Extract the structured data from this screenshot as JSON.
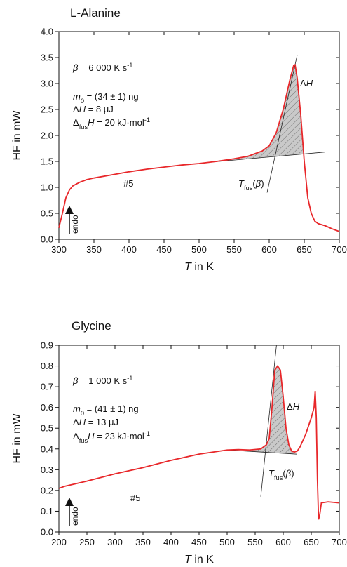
{
  "chart_data": [
    {
      "type": "line",
      "title": "L-Alanine",
      "color": "#e8272a",
      "xlabel": [
        {
          "text": "T",
          "style": "italic"
        },
        {
          "text": " in K"
        }
      ],
      "ylabel": "HF in mW",
      "xlim": [
        300,
        700
      ],
      "ylim": [
        0,
        4
      ],
      "xticks": [
        300,
        350,
        400,
        450,
        500,
        550,
        600,
        650,
        700
      ],
      "yticks": [
        {
          "value": 0,
          "label": "0.0"
        },
        0.5,
        {
          "value": 1,
          "label": "1.0"
        },
        1.5,
        {
          "value": 2,
          "label": "2.0"
        },
        2.5,
        {
          "value": 3,
          "label": "3.0"
        },
        3.5,
        {
          "value": 4,
          "label": "4.0"
        }
      ],
      "x": [
        300,
        305,
        310,
        315,
        320,
        330,
        340,
        350,
        375,
        400,
        425,
        450,
        475,
        500,
        525,
        550,
        570,
        580,
        590,
        600,
        610,
        620,
        630,
        635,
        637,
        640,
        645,
        650,
        655,
        660,
        665,
        670,
        680,
        690,
        700
      ],
      "values": [
        0.22,
        0.5,
        0.8,
        0.95,
        1.03,
        1.1,
        1.15,
        1.18,
        1.24,
        1.3,
        1.35,
        1.39,
        1.43,
        1.46,
        1.5,
        1.55,
        1.6,
        1.65,
        1.7,
        1.8,
        2.05,
        2.5,
        3.1,
        3.35,
        3.36,
        3.1,
        2.4,
        1.5,
        0.8,
        0.5,
        0.35,
        0.3,
        0.26,
        0.2,
        0.15
      ],
      "tangents": [
        {
          "x": [
            520,
            680
          ],
          "y": [
            1.49,
            1.68
          ]
        },
        {
          "x": [
            597,
            640
          ],
          "y": [
            0.9,
            3.55
          ]
        }
      ],
      "shade": {
        "x": [
          560,
          650
        ]
      },
      "annotations": [
        {
          "parts": [
            {
              "text": "β",
              "style": "italic"
            },
            {
              "text": " = 6 000 K s"
            },
            {
              "text": "-1",
              "style": "sup"
            }
          ]
        },
        {
          "parts": [
            {
              "text": "m",
              "style": "italic"
            },
            {
              "text": "0",
              "style": "sub"
            },
            {
              "text": "  = (34 ± 1) ng"
            }
          ]
        },
        {
          "parts": [
            {
              "text": "Δ"
            },
            {
              "text": "H",
              "style": "italic"
            },
            {
              "text": "  = 8 μJ"
            }
          ]
        },
        {
          "parts": [
            {
              "text": "Δ"
            },
            {
              "text": "fus",
              "style": "sub"
            },
            {
              "text": "H",
              "style": "italic"
            },
            {
              "text": " = 20 kJ·mol"
            },
            {
              "text": "-1",
              "style": "sup"
            }
          ]
        },
        {
          "parts": [
            {
              "text": "Δ"
            },
            {
              "text": "H",
              "style": "italic"
            }
          ]
        },
        {
          "parts": [
            {
              "text": "T",
              "style": "italic"
            },
            {
              "text": "fus",
              "style": "sub"
            },
            {
              "text": "("
            },
            {
              "text": "β",
              "style": "italic"
            },
            {
              "text": ")"
            }
          ]
        },
        {
          "parts": [
            {
              "text": "#5"
            }
          ]
        },
        {
          "parts": [
            {
              "text": "endo"
            }
          ]
        }
      ]
    },
    {
      "type": "line",
      "title": "Glycine",
      "color": "#e8272a",
      "xlabel": [
        {
          "text": "T",
          "style": "italic"
        },
        {
          "text": " in K"
        }
      ],
      "ylabel": "HF in mW",
      "xlim": [
        200,
        700
      ],
      "ylim": [
        0,
        0.9
      ],
      "xticks": [
        200,
        250,
        300,
        350,
        400,
        450,
        500,
        550,
        600,
        650,
        700
      ],
      "yticks": [
        {
          "value": 0,
          "label": "0.0"
        },
        0.1,
        0.2,
        0.3,
        0.4,
        0.5,
        0.6,
        0.7,
        0.8,
        0.9
      ],
      "x": [
        200,
        210,
        250,
        300,
        350,
        400,
        450,
        500,
        520,
        540,
        560,
        570,
        575,
        580,
        585,
        590,
        595,
        600,
        605,
        610,
        615,
        620,
        625,
        630,
        640,
        650,
        655,
        657,
        659,
        661,
        663,
        665,
        668,
        680,
        700
      ],
      "values": [
        0.21,
        0.22,
        0.245,
        0.28,
        0.31,
        0.345,
        0.375,
        0.395,
        0.397,
        0.395,
        0.4,
        0.42,
        0.45,
        0.6,
        0.78,
        0.8,
        0.78,
        0.65,
        0.5,
        0.42,
        0.39,
        0.385,
        0.39,
        0.41,
        0.47,
        0.55,
        0.6,
        0.68,
        0.55,
        0.25,
        0.06,
        0.08,
        0.14,
        0.145,
        0.14
      ],
      "tangents": [
        {
          "x": [
            500,
            625
          ],
          "y": [
            0.395,
            0.375
          ]
        },
        {
          "x": [
            560,
            588
          ],
          "y": [
            0.17,
            0.9
          ]
        }
      ],
      "shade": {
        "x": [
          545,
          618
        ]
      },
      "annotations": [
        {
          "parts": [
            {
              "text": "β",
              "style": "italic"
            },
            {
              "text": " = 1 000 K s"
            },
            {
              "text": "-1",
              "style": "sup"
            }
          ]
        },
        {
          "parts": [
            {
              "text": "m",
              "style": "italic"
            },
            {
              "text": "0",
              "style": "sub"
            },
            {
              "text": "  = (41 ± 1) ng"
            }
          ]
        },
        {
          "parts": [
            {
              "text": "Δ"
            },
            {
              "text": "H",
              "style": "italic"
            },
            {
              "text": "  = 13 μJ"
            }
          ]
        },
        {
          "parts": [
            {
              "text": "Δ"
            },
            {
              "text": "fus",
              "style": "sub"
            },
            {
              "text": "H",
              "style": "italic"
            },
            {
              "text": " = 23 kJ·mol"
            },
            {
              "text": "-1",
              "style": "sup"
            }
          ]
        },
        {
          "parts": [
            {
              "text": "Δ"
            },
            {
              "text": "H",
              "style": "italic"
            }
          ]
        },
        {
          "parts": [
            {
              "text": "T",
              "style": "italic"
            },
            {
              "text": "fus",
              "style": "sub"
            },
            {
              "text": "("
            },
            {
              "text": "β",
              "style": "italic"
            },
            {
              "text": ")"
            }
          ]
        },
        {
          "parts": [
            {
              "text": "#5"
            }
          ]
        },
        {
          "parts": [
            {
              "text": "endo"
            }
          ]
        }
      ]
    }
  ]
}
